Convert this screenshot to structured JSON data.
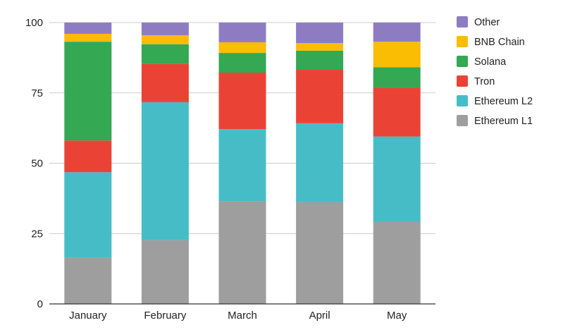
{
  "chart_data": {
    "type": "bar",
    "stacked": true,
    "categories": [
      "January",
      "February",
      "March",
      "April",
      "May"
    ],
    "ylim": [
      0,
      100
    ],
    "yticks": [
      0,
      25,
      50,
      75,
      100
    ],
    "grid": true,
    "legend_position": "right",
    "series": [
      {
        "name": "Ethereum L1",
        "color": "#9e9e9e",
        "values": [
          16.5,
          22.7,
          36.5,
          36.2,
          29.2
        ]
      },
      {
        "name": "Ethereum L2",
        "color": "#46bdc6",
        "values": [
          30.3,
          49.0,
          25.6,
          28.0,
          30.3
        ]
      },
      {
        "name": "Tron",
        "color": "#ea4335",
        "values": [
          11.3,
          13.6,
          20.1,
          19.0,
          17.3
        ]
      },
      {
        "name": "Solana",
        "color": "#34a853",
        "values": [
          35.1,
          7.0,
          7.0,
          6.8,
          7.3
        ]
      },
      {
        "name": "BNB Chain",
        "color": "#fbbc04",
        "values": [
          2.8,
          3.2,
          3.8,
          2.7,
          9.1
        ]
      },
      {
        "name": "Other",
        "color": "#8e7cc3",
        "values": [
          4.0,
          4.5,
          7.0,
          7.3,
          6.8
        ]
      }
    ]
  }
}
